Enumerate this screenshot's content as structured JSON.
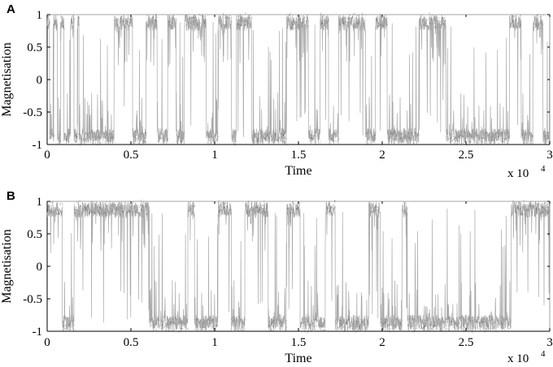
{
  "chart_data": [
    {
      "type": "line",
      "panel_label": "A",
      "xlabel": "Time",
      "ylabel": "Magnetisation",
      "x_exponent_label": "x 10",
      "x_exponent_power": "4",
      "xlim": [
        0,
        30000
      ],
      "ylim": [
        -1,
        1
      ],
      "xticks": [
        0,
        5000,
        10000,
        15000,
        20000,
        25000,
        30000
      ],
      "xtick_labels": [
        "0",
        "0.5",
        "1",
        "1.5",
        "2",
        "2.5",
        "3"
      ],
      "yticks": [
        1,
        0.5,
        0,
        -0.5,
        -1
      ],
      "ytick_labels": [
        "1",
        "0.5",
        "0",
        "-0.5",
        "-1"
      ],
      "grid": false,
      "states": [
        {
          "x_start": 0,
          "x_end": 150,
          "y": 1
        },
        {
          "x_start": 150,
          "x_end": 400,
          "y": -1
        },
        {
          "x_start": 400,
          "x_end": 600,
          "y": 1
        },
        {
          "x_start": 600,
          "x_end": 800,
          "y": -1
        },
        {
          "x_start": 800,
          "x_end": 1000,
          "y": 1
        },
        {
          "x_start": 1000,
          "x_end": 1400,
          "y": -1
        },
        {
          "x_start": 1400,
          "x_end": 1600,
          "y": 1
        },
        {
          "x_start": 1600,
          "x_end": 1800,
          "y": -1
        },
        {
          "x_start": 1800,
          "x_end": 1900,
          "y": 1
        },
        {
          "x_start": 1900,
          "x_end": 4000,
          "y": -1
        },
        {
          "x_start": 4000,
          "x_end": 5100,
          "y": 1
        },
        {
          "x_start": 5100,
          "x_end": 5900,
          "y": -1
        },
        {
          "x_start": 5900,
          "x_end": 6600,
          "y": 1
        },
        {
          "x_start": 6600,
          "x_end": 7200,
          "y": -1
        },
        {
          "x_start": 7200,
          "x_end": 7700,
          "y": 1
        },
        {
          "x_start": 7700,
          "x_end": 8200,
          "y": -1
        },
        {
          "x_start": 8200,
          "x_end": 9500,
          "y": 1
        },
        {
          "x_start": 9500,
          "x_end": 10200,
          "y": -1
        },
        {
          "x_start": 10200,
          "x_end": 11000,
          "y": 1
        },
        {
          "x_start": 11000,
          "x_end": 11300,
          "y": -1
        },
        {
          "x_start": 11300,
          "x_end": 12200,
          "y": 1
        },
        {
          "x_start": 12200,
          "x_end": 14300,
          "y": -1
        },
        {
          "x_start": 14300,
          "x_end": 15600,
          "y": 1
        },
        {
          "x_start": 15600,
          "x_end": 16300,
          "y": -1
        },
        {
          "x_start": 16300,
          "x_end": 16800,
          "y": 1
        },
        {
          "x_start": 16800,
          "x_end": 17400,
          "y": -1
        },
        {
          "x_start": 17400,
          "x_end": 19000,
          "y": 1
        },
        {
          "x_start": 19000,
          "x_end": 19600,
          "y": -1
        },
        {
          "x_start": 19600,
          "x_end": 20300,
          "y": 1
        },
        {
          "x_start": 20300,
          "x_end": 22200,
          "y": -1
        },
        {
          "x_start": 22200,
          "x_end": 23800,
          "y": 1
        },
        {
          "x_start": 23800,
          "x_end": 27600,
          "y": -1
        },
        {
          "x_start": 27600,
          "x_end": 28300,
          "y": 1
        },
        {
          "x_start": 28300,
          "x_end": 29000,
          "y": -1
        },
        {
          "x_start": 29000,
          "x_end": 29600,
          "y": 1
        },
        {
          "x_start": 29600,
          "x_end": 30000,
          "y": -1
        }
      ]
    },
    {
      "type": "line",
      "panel_label": "B",
      "xlabel": "Time",
      "ylabel": "Magnetisation",
      "x_exponent_label": "x 10",
      "x_exponent_power": "4",
      "xlim": [
        0,
        30000
      ],
      "ylim": [
        -1,
        1
      ],
      "xticks": [
        0,
        5000,
        10000,
        15000,
        20000,
        25000,
        30000
      ],
      "xtick_labels": [
        "0",
        "0.5",
        "1",
        "1.5",
        "2",
        "2.5",
        "3"
      ],
      "yticks": [
        1,
        0.5,
        0,
        -0.5,
        -1
      ],
      "ytick_labels": [
        "1",
        "0.5",
        "0",
        "-0.5",
        "-1"
      ],
      "grid": false,
      "states": [
        {
          "x_start": 0,
          "x_end": 900,
          "y": 1
        },
        {
          "x_start": 900,
          "x_end": 1600,
          "y": -1
        },
        {
          "x_start": 1600,
          "x_end": 6100,
          "y": 1
        },
        {
          "x_start": 6100,
          "x_end": 8400,
          "y": -1
        },
        {
          "x_start": 8400,
          "x_end": 8800,
          "y": 1
        },
        {
          "x_start": 8800,
          "x_end": 10200,
          "y": -1
        },
        {
          "x_start": 10200,
          "x_end": 11000,
          "y": 1
        },
        {
          "x_start": 11000,
          "x_end": 11800,
          "y": -1
        },
        {
          "x_start": 11800,
          "x_end": 13200,
          "y": 1
        },
        {
          "x_start": 13200,
          "x_end": 14300,
          "y": -1
        },
        {
          "x_start": 14300,
          "x_end": 15100,
          "y": 1
        },
        {
          "x_start": 15100,
          "x_end": 16600,
          "y": -1
        },
        {
          "x_start": 16600,
          "x_end": 17200,
          "y": 1
        },
        {
          "x_start": 17200,
          "x_end": 19200,
          "y": -1
        },
        {
          "x_start": 19200,
          "x_end": 19900,
          "y": 1
        },
        {
          "x_start": 19900,
          "x_end": 21200,
          "y": -1
        },
        {
          "x_start": 21200,
          "x_end": 21500,
          "y": 1
        },
        {
          "x_start": 21500,
          "x_end": 27700,
          "y": -1
        },
        {
          "x_start": 27700,
          "x_end": 30000,
          "y": 1
        }
      ]
    }
  ]
}
